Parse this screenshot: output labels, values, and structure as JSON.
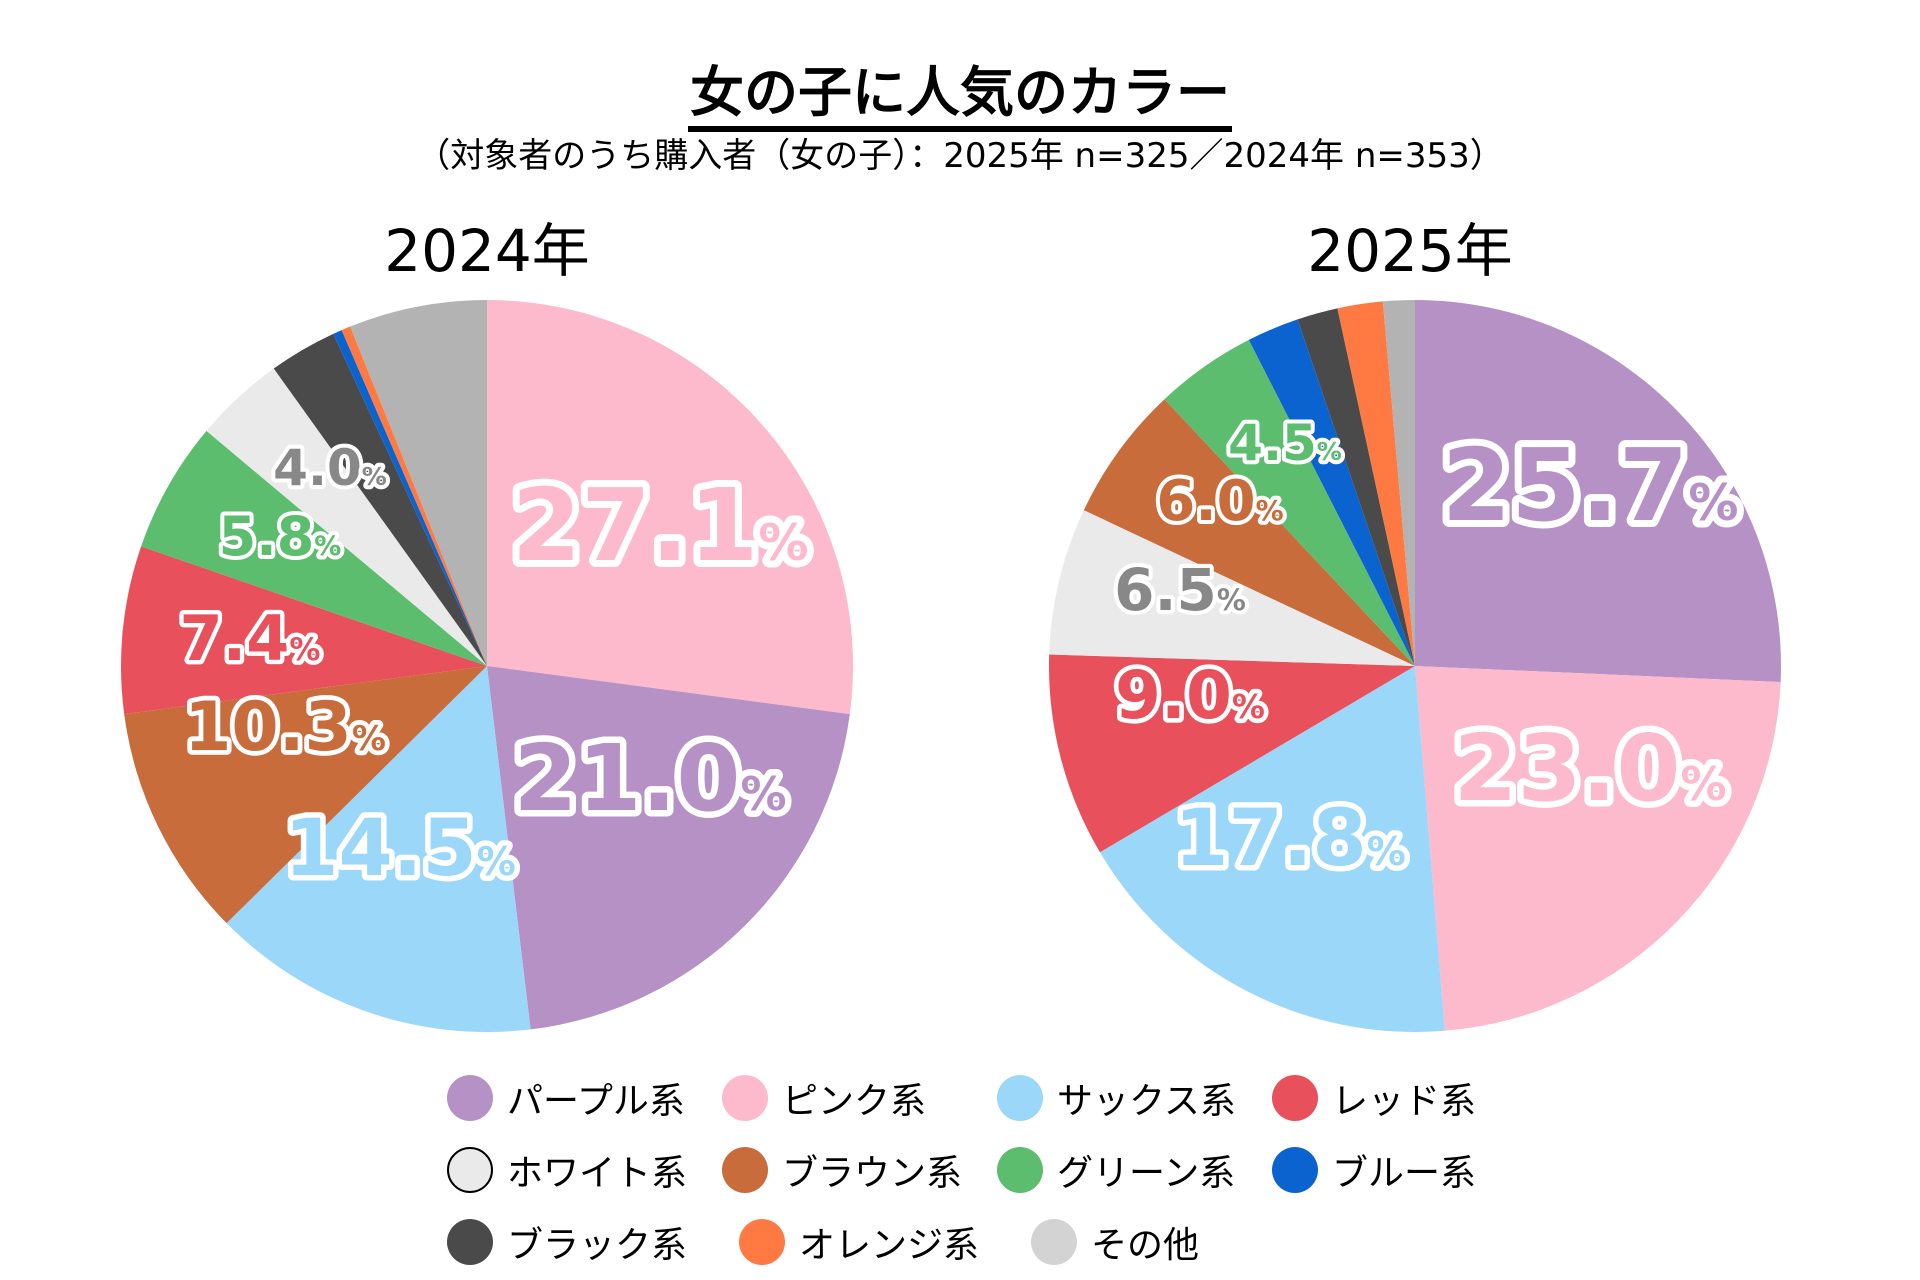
{
  "title": "女の子に人気のカラー",
  "subtitle": "（対象者のうち購入者（女の子）：2025年 n=325／2024年 n=353）",
  "legend": [
    {
      "key": "purple",
      "label": "パープル系",
      "color": "#B691C6"
    },
    {
      "key": "pink",
      "label": "ピンク系",
      "color": "#FDBACD"
    },
    {
      "key": "sax",
      "label": "サックス系",
      "color": "#9BD7F8"
    },
    {
      "key": "red",
      "label": "レッド系",
      "color": "#E8505B"
    },
    {
      "key": "white",
      "label": "ホワイト系",
      "color": "#EAEAEA"
    },
    {
      "key": "brown",
      "label": "ブラウン系",
      "color": "#C96C3C"
    },
    {
      "key": "green",
      "label": "グリーン系",
      "color": "#5CBD6F"
    },
    {
      "key": "blue",
      "label": "ブルー系",
      "color": "#0A63CE"
    },
    {
      "key": "black",
      "label": "ブラック系",
      "color": "#4A4A4A"
    },
    {
      "key": "orange",
      "label": "オレンジ系",
      "color": "#FE7A42"
    },
    {
      "key": "other",
      "label": "その他",
      "color": "#D3D3D3"
    }
  ],
  "chart_data": [
    {
      "type": "pie",
      "title": "2024年",
      "unit": "%",
      "slices": [
        {
          "key": "pink",
          "label": "ピンク系",
          "value": 27.1,
          "color": "#FDBACD",
          "shown_label": "27.1",
          "label_color": "#FDBACD"
        },
        {
          "key": "purple",
          "label": "パープル系",
          "value": 21.0,
          "color": "#B691C6",
          "shown_label": "21.0",
          "label_color": "#B691C6"
        },
        {
          "key": "sax",
          "label": "サックス系",
          "value": 14.5,
          "color": "#9BD7F8",
          "shown_label": "14.5",
          "label_color": "#9BD7F8"
        },
        {
          "key": "brown",
          "label": "ブラウン系",
          "value": 10.3,
          "color": "#C96C3C",
          "shown_label": "10.3",
          "label_color": "#C96C3C"
        },
        {
          "key": "red",
          "label": "レッド系",
          "value": 7.4,
          "color": "#E8505B",
          "shown_label": "7.4",
          "label_color": "#E8505B"
        },
        {
          "key": "green",
          "label": "グリーン系",
          "value": 5.8,
          "color": "#5CBD6F",
          "shown_label": "5.8",
          "label_color": "#5CBD6F"
        },
        {
          "key": "white",
          "label": "ホワイト系",
          "value": 4.0,
          "color": "#EAEAEA",
          "shown_label": "4.0",
          "label_color": "#888888"
        },
        {
          "key": "black",
          "label": "ブラック系",
          "value": 3.0,
          "color": "#4A4A4A",
          "shown_label": null
        },
        {
          "key": "blue",
          "label": "ブルー系",
          "value": 0.4,
          "color": "#0A63CE",
          "shown_label": null
        },
        {
          "key": "orange",
          "label": "オレンジ系",
          "value": 0.4,
          "color": "#FE7A42",
          "shown_label": null
        },
        {
          "key": "other",
          "label": "その他",
          "value": 6.1,
          "color": "#B3B3B3",
          "shown_label": null
        }
      ]
    },
    {
      "type": "pie",
      "title": "2025年",
      "unit": "%",
      "slices": [
        {
          "key": "purple",
          "label": "パープル系",
          "value": 25.7,
          "color": "#B691C6",
          "shown_label": "25.7",
          "label_color": "#B691C6"
        },
        {
          "key": "pink",
          "label": "ピンク系",
          "value": 23.0,
          "color": "#FDBACD",
          "shown_label": "23.0",
          "label_color": "#FDBACD"
        },
        {
          "key": "sax",
          "label": "サックス系",
          "value": 17.8,
          "color": "#9BD7F8",
          "shown_label": "17.8",
          "label_color": "#9BD7F8"
        },
        {
          "key": "red",
          "label": "レッド系",
          "value": 9.0,
          "color": "#E8505B",
          "shown_label": "9.0",
          "label_color": "#E8505B"
        },
        {
          "key": "white",
          "label": "ホワイト系",
          "value": 6.5,
          "color": "#EAEAEA",
          "shown_label": "6.5",
          "label_color": "#888888"
        },
        {
          "key": "brown",
          "label": "ブラウン系",
          "value": 6.0,
          "color": "#C96C3C",
          "shown_label": "6.0",
          "label_color": "#C96C3C"
        },
        {
          "key": "green",
          "label": "グリーン系",
          "value": 4.5,
          "color": "#5CBD6F",
          "shown_label": "4.5",
          "label_color": "#5CBD6F"
        },
        {
          "key": "blue",
          "label": "ブルー系",
          "value": 2.3,
          "color": "#0A63CE",
          "shown_label": null
        },
        {
          "key": "black",
          "label": "ブラック系",
          "value": 1.8,
          "color": "#4A4A4A",
          "shown_label": null
        },
        {
          "key": "orange",
          "label": "オレンジ系",
          "value": 2.0,
          "color": "#FE7A42",
          "shown_label": null
        },
        {
          "key": "other",
          "label": "その他",
          "value": 1.4,
          "color": "#B3B3B3",
          "shown_label": null
        }
      ]
    }
  ]
}
